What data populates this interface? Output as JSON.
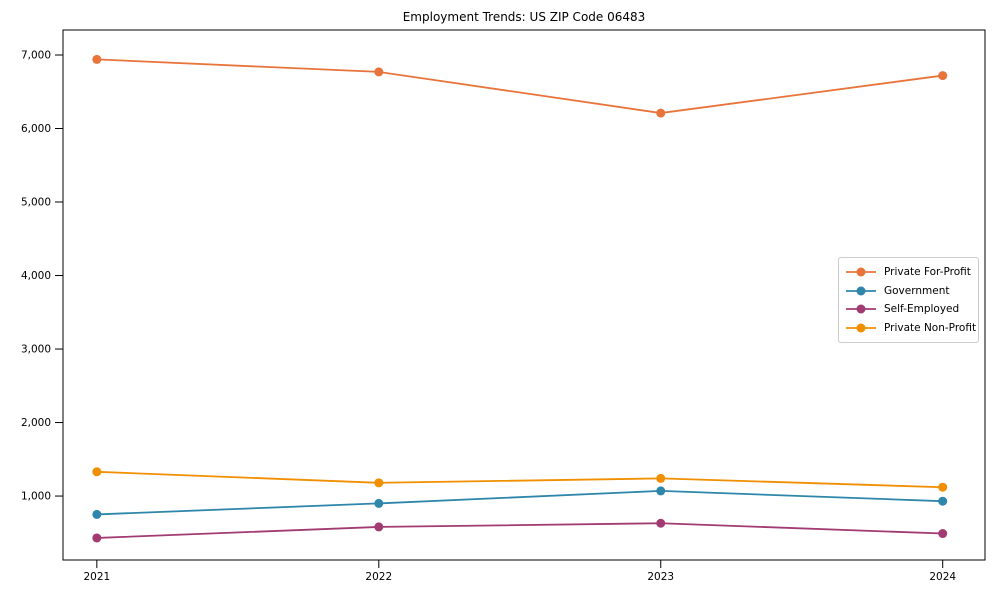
{
  "chart_data": {
    "type": "line",
    "title": "Employment Trends: US ZIP Code 06483",
    "x": [
      2021,
      2022,
      2023,
      2024
    ],
    "x_tick_labels": [
      "2021",
      "2022",
      "2023",
      "2024"
    ],
    "series": [
      {
        "name": "Private For-Profit",
        "color": "#E8743B",
        "values": [
          6940,
          6770,
          6210,
          6720
        ]
      },
      {
        "name": "Government",
        "color": "#2E86AB",
        "values": [
          750,
          900,
          1070,
          930
        ]
      },
      {
        "name": "Self-Employed",
        "color": "#A23B72",
        "values": [
          430,
          580,
          630,
          490
        ]
      },
      {
        "name": "Private Non-Profit",
        "color": "#F18F01",
        "values": [
          1330,
          1180,
          1240,
          1120
        ]
      }
    ],
    "xlabel": "",
    "ylabel": "",
    "yticks": [
      1000,
      2000,
      3000,
      4000,
      5000,
      6000,
      7000
    ],
    "ylim": [
      130,
      7340
    ],
    "xlim": [
      2020.88,
      2024.15
    ],
    "grid": false,
    "legend_position": "center-right",
    "marker": "circle",
    "frame": "full-box",
    "axis_color": "#000000",
    "tick_label_color": "#000000"
  }
}
